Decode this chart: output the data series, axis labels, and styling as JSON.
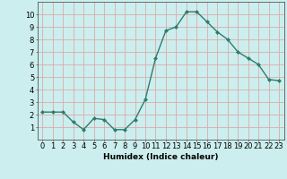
{
  "x": [
    0,
    1,
    2,
    3,
    4,
    5,
    6,
    7,
    8,
    9,
    10,
    11,
    12,
    13,
    14,
    15,
    16,
    17,
    18,
    19,
    20,
    21,
    22,
    23
  ],
  "y": [
    2.2,
    2.2,
    2.2,
    1.4,
    0.8,
    1.7,
    1.6,
    0.8,
    0.8,
    1.6,
    3.2,
    6.5,
    8.7,
    9.0,
    10.2,
    10.2,
    9.4,
    8.6,
    8.0,
    7.0,
    6.5,
    6.0,
    4.8,
    4.7
  ],
  "line_color": "#2e7d6e",
  "marker": "D",
  "marker_size": 2.0,
  "bg_color": "#cceeee",
  "grid_color": "#ddaaaa",
  "xlabel": "Humidex (Indice chaleur)",
  "ylabel": "",
  "xlim": [
    -0.5,
    23.5
  ],
  "ylim": [
    0,
    11
  ],
  "yticks": [
    1,
    2,
    3,
    4,
    5,
    6,
    7,
    8,
    9,
    10
  ],
  "xticks": [
    0,
    1,
    2,
    3,
    4,
    5,
    6,
    7,
    8,
    9,
    10,
    11,
    12,
    13,
    14,
    15,
    16,
    17,
    18,
    19,
    20,
    21,
    22,
    23
  ],
  "font_size": 6.0,
  "xlabel_font_size": 6.5,
  "line_width": 1.0
}
